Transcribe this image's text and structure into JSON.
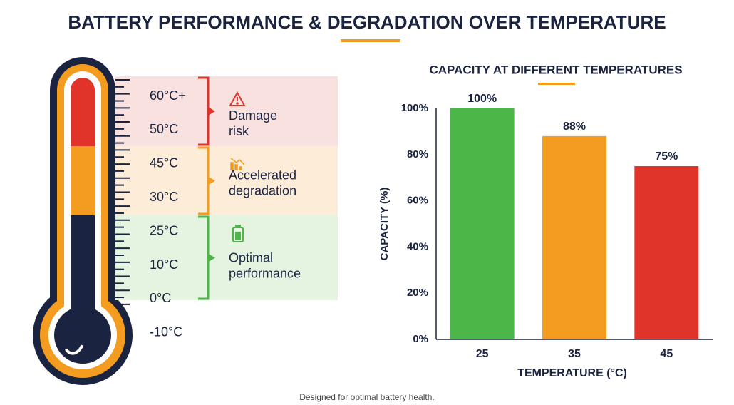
{
  "title": "BATTERY PERFORMANCE & DEGRADATION OVER TEMPERATURE",
  "thermometer": {
    "labels": [
      "60°C+",
      "50°C",
      "45°C",
      "30°C",
      "25°C",
      "10°C",
      "0°C",
      "-10°C"
    ],
    "zones": [
      {
        "label": "Damage risk",
        "color": "#e0342b",
        "background": "#f9e1e0"
      },
      {
        "label": "Accelerated degradation",
        "color": "#f39c1f",
        "background": "#fdecd8"
      },
      {
        "label": "Optimal performance",
        "color": "#4cb748",
        "background": "#e5f3e1"
      }
    ]
  },
  "chart_data": {
    "type": "bar",
    "title": "CAPACITY AT DIFFERENT TEMPERATURES",
    "x_label": "TEMPERATURE (°C)",
    "y_label": "CAPACITY (%)",
    "categories": [
      "25",
      "35",
      "45"
    ],
    "values": [
      100,
      88,
      75
    ],
    "value_labels": [
      "100%",
      "88%",
      "75%"
    ],
    "colors": [
      "#4cb748",
      "#f39c1f",
      "#e0342b"
    ],
    "ylim": [
      0,
      100
    ],
    "yticks": [
      {
        "value": 0,
        "label": "0%"
      },
      {
        "value": 20,
        "label": "20%"
      },
      {
        "value": 40,
        "label": "40%"
      },
      {
        "value": 60,
        "label": "60%"
      },
      {
        "value": 80,
        "label": "80%"
      },
      {
        "value": 100,
        "label": "100%"
      }
    ]
  },
  "footer": "Designed for optimal battery health."
}
